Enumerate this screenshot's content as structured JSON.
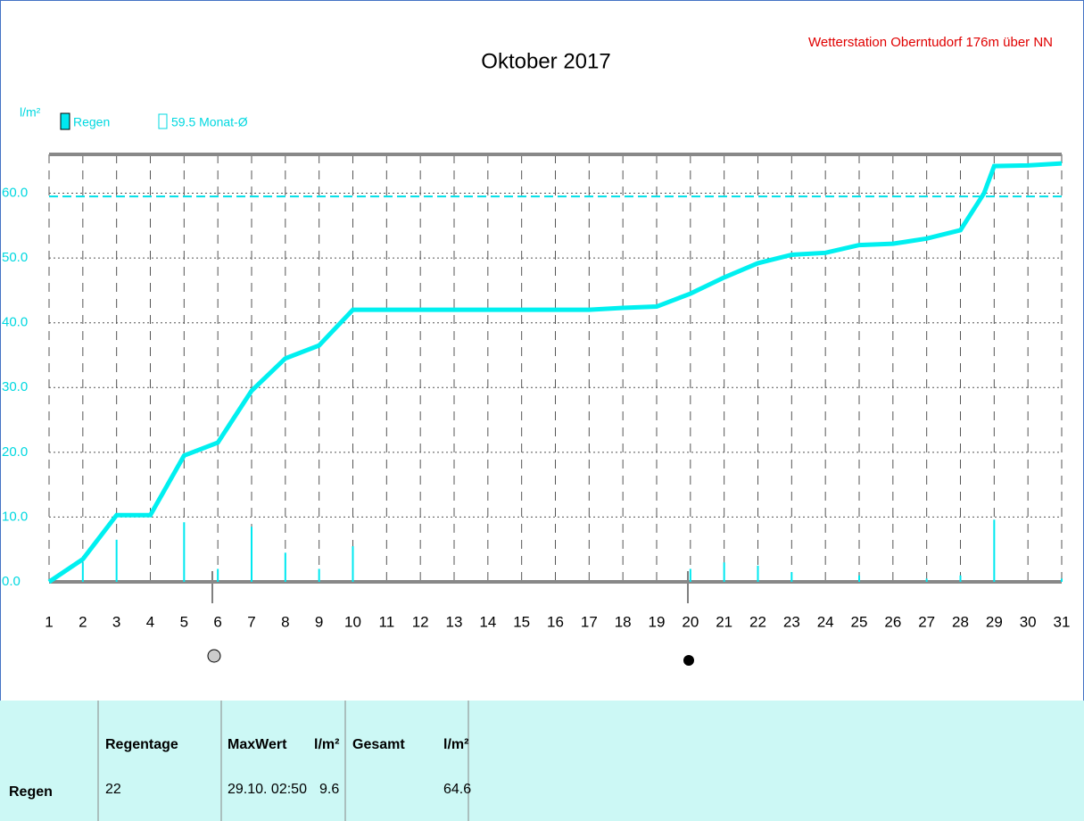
{
  "chart_data": {
    "type": "line",
    "title": "Oktober 2017",
    "subtitle": "Wetterstation Oberntudorf 176m über NN",
    "y_label": "l/m²",
    "xlim": [
      1,
      31
    ],
    "xticks": [
      1,
      2,
      3,
      4,
      5,
      6,
      7,
      8,
      9,
      10,
      11,
      12,
      13,
      14,
      15,
      16,
      17,
      18,
      19,
      20,
      21,
      22,
      23,
      24,
      25,
      26,
      27,
      28,
      29,
      30,
      31
    ],
    "ylim": [
      0,
      66
    ],
    "yticks": [
      {
        "value": 0,
        "label": "0.0"
      },
      {
        "value": 10,
        "label": "10.0"
      },
      {
        "value": 20,
        "label": "20.0"
      },
      {
        "value": 30,
        "label": "30.0"
      },
      {
        "value": 40,
        "label": "40.0"
      },
      {
        "value": 50,
        "label": "50.0"
      },
      {
        "value": 60,
        "label": "60.0"
      }
    ],
    "grid": true,
    "series": [
      {
        "name": "Regen",
        "color": "#00e8f0",
        "x": [
          2,
          3,
          5,
          6,
          7,
          8,
          9,
          10,
          20,
          21,
          22,
          23,
          25,
          27,
          28,
          29,
          31
        ],
        "values": [
          3,
          6.5,
          9.2,
          2,
          8.5,
          4.5,
          2,
          5.5,
          2,
          3,
          2.5,
          1.5,
          1,
          0.5,
          1,
          9.6,
          0.5
        ]
      }
    ],
    "cumulative": {
      "color": "#00f0f0",
      "x": [
        1,
        2,
        3,
        4,
        5,
        6,
        7,
        8,
        9,
        10,
        11,
        12,
        13,
        14,
        15,
        16,
        17,
        18,
        19,
        20,
        21,
        22,
        23,
        24,
        25,
        26,
        27,
        28,
        28.7,
        29,
        30,
        31
      ],
      "values": [
        0,
        3.5,
        10.3,
        10.3,
        19.5,
        21.5,
        29.5,
        34.5,
        36.5,
        42,
        42,
        42,
        42,
        42,
        42,
        42,
        42,
        42.3,
        42.5,
        44.5,
        47,
        49.2,
        50.5,
        50.8,
        52,
        52.2,
        53,
        54.3,
        60,
        64.2,
        64.3,
        64.6
      ]
    },
    "reference": {
      "value": 59.5,
      "label": "59.5 Monat-Ø",
      "color": "#00e0e8"
    }
  },
  "table": {
    "headers": [
      "Regentage",
      "MaxWert",
      "l/m²",
      "Gesamt",
      "l/m²"
    ],
    "row": {
      "label": "Regen",
      "regentage": 22,
      "maxwert": "29.10. 02:50",
      "max": 9.6,
      "gesamt": 64.6
    }
  }
}
